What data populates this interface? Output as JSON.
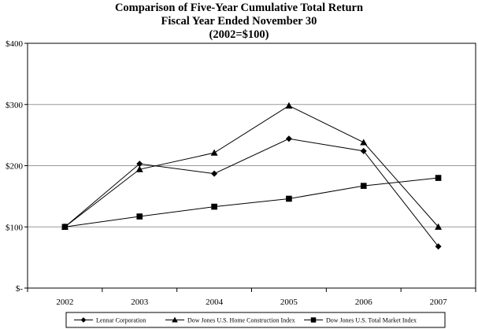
{
  "chart_data": {
    "type": "line",
    "title_lines": [
      "Comparison of Five-Year Cumulative Total Return",
      "Fiscal Year Ended November 30",
      "(2002=$100)"
    ],
    "categories": [
      "2002",
      "2003",
      "2004",
      "2005",
      "2006",
      "2007"
    ],
    "y_ticks": [
      {
        "value": 0,
        "label": "$-"
      },
      {
        "value": 100,
        "label": "$100"
      },
      {
        "value": 200,
        "label": "$200"
      },
      {
        "value": 300,
        "label": "$300"
      },
      {
        "value": 400,
        "label": "$400"
      }
    ],
    "ylim": [
      0,
      400
    ],
    "grid": "horizontal",
    "legend_position": "bottom",
    "series": [
      {
        "name": "Lennar Corporation",
        "marker": "diamond",
        "values": [
          100,
          203,
          187,
          244,
          224,
          68
        ]
      },
      {
        "name": "Dow Jones U.S. Home Construction Index",
        "marker": "triangle",
        "values": [
          100,
          194,
          221,
          298,
          238,
          100
        ]
      },
      {
        "name": "Dow Jones U.S. Total Market Index",
        "marker": "square",
        "values": [
          100,
          117,
          133,
          146,
          167,
          180
        ]
      }
    ],
    "colors": {
      "line": "#000000",
      "grid": "#999999",
      "axis": "#000000"
    }
  }
}
